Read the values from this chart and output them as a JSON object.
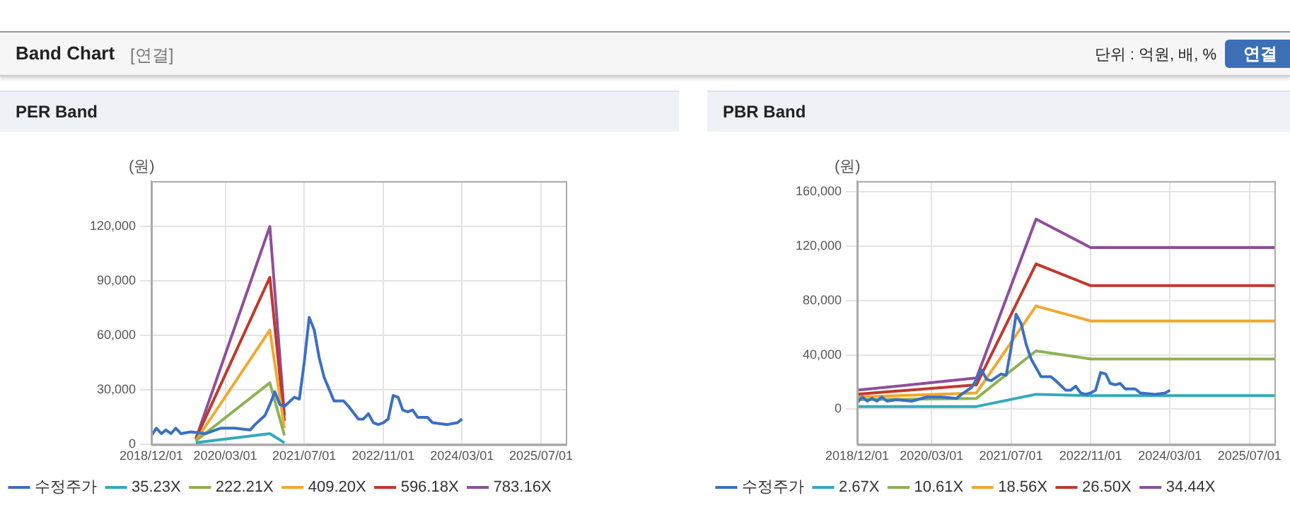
{
  "chart_data": [
    {
      "type": "other",
      "title": "Band Chart",
      "annotations": [
        "[연결]",
        "단위 : 억원, 배, %",
        "연결"
      ]
    },
    {
      "type": "line",
      "title": "PER Band",
      "ylabel": "(원)",
      "xlim": [
        "2018-12-01",
        "2025-12-01"
      ],
      "ylim": [
        0,
        145000
      ],
      "yticks": [
        0,
        {
          "value": 30000,
          "label": "30,000"
        },
        {
          "value": 60000,
          "label": "60,000"
        },
        {
          "value": 90000,
          "label": "90,000"
        },
        {
          "value": 120000,
          "label": "120,000"
        }
      ],
      "xticks": [
        {
          "value": "2018-12-01",
          "label": "2018/12/01"
        },
        {
          "value": "2020-03-01",
          "label": "2020/03/01"
        },
        {
          "value": "2021-07-01",
          "label": "2021/07/01"
        },
        {
          "value": "2022-11-01",
          "label": "2022/11/01"
        },
        {
          "value": "2024-03-01",
          "label": "2024/03/01"
        },
        {
          "value": "2025-07-01",
          "label": "2025/07/01"
        }
      ],
      "grid": true,
      "legend": "bottom",
      "series": [
        {
          "name": "수정주가",
          "color": "#3a70c4",
          "x": [
            "2018-12",
            "2019-01",
            "2019-02",
            "2019-03",
            "2019-04",
            "2019-05",
            "2019-06",
            "2019-08",
            "2019-11",
            "2020-02",
            "2020-05",
            "2020-08",
            "2020-09",
            "2020-11",
            "2020-12",
            "2021-01",
            "2021-02",
            "2021-03",
            "2021-05",
            "2021-06",
            "2021-07",
            "2021-08",
            "2021-09",
            "2021-10",
            "2021-11",
            "2022-01",
            "2022-03",
            "2022-04",
            "2022-06",
            "2022-07",
            "2022-08",
            "2022-09",
            "2022-10",
            "2022-11",
            "2022-12",
            "2023-01",
            "2023-02",
            "2023-03",
            "2023-04",
            "2023-05",
            "2023-06",
            "2023-08",
            "2023-09",
            "2023-12",
            "2024-02",
            "2024-03"
          ],
          "values": [
            5000,
            9000,
            6000,
            8000,
            6000,
            9000,
            6000,
            7000,
            6000,
            9000,
            9000,
            8000,
            11000,
            16000,
            22000,
            29000,
            22000,
            21000,
            26000,
            25000,
            45000,
            70000,
            63000,
            48000,
            37000,
            24000,
            24000,
            21000,
            14000,
            14000,
            17000,
            12000,
            11000,
            12000,
            14000,
            27000,
            26000,
            19000,
            18000,
            19000,
            15000,
            15000,
            12000,
            11000,
            12000,
            14000
          ]
        },
        {
          "name": "35.23X",
          "color": "#33aabb",
          "x": [
            "2019-09",
            "2020-12",
            "2021-03"
          ],
          "values": [
            1000,
            6000,
            1000
          ]
        },
        {
          "name": "222.21X",
          "color": "#8db255",
          "x": [
            "2019-09",
            "2020-12",
            "2021-03"
          ],
          "values": [
            2000,
            34000,
            5000
          ]
        },
        {
          "name": "409.20X",
          "color": "#f0a830",
          "x": [
            "2019-09",
            "2020-12",
            "2021-03"
          ],
          "values": [
            2000,
            63000,
            9000
          ]
        },
        {
          "name": "596.18X",
          "color": "#c0392b",
          "x": [
            "2019-09",
            "2020-12",
            "2021-03"
          ],
          "values": [
            3000,
            92000,
            13000
          ]
        },
        {
          "name": "783.16X",
          "color": "#8e4f9a",
          "x": [
            "2019-09",
            "2020-12",
            "2021-03"
          ],
          "values": [
            3000,
            120000,
            16000
          ]
        }
      ]
    },
    {
      "type": "line",
      "title": "PBR Band",
      "ylabel": "(원)",
      "xlim": [
        "2018-12-01",
        "2025-12-01"
      ],
      "ylim": [
        -26000,
        168000
      ],
      "yticks": [
        0,
        {
          "value": 40000,
          "label": "40,000"
        },
        {
          "value": 80000,
          "label": "80,000"
        },
        {
          "value": 120000,
          "label": "120,000"
        },
        {
          "value": 160000,
          "label": "160,000"
        }
      ],
      "xticks": [
        {
          "value": "2018-12-01",
          "label": "2018/12/01"
        },
        {
          "value": "2020-03-01",
          "label": "2020/03/01"
        },
        {
          "value": "2021-07-01",
          "label": "2021/07/01"
        },
        {
          "value": "2022-11-01",
          "label": "2022/11/01"
        },
        {
          "value": "2024-03-01",
          "label": "2024/03/01"
        },
        {
          "value": "2025-07-01",
          "label": "2025/07/01"
        }
      ],
      "grid": true,
      "legend": "bottom",
      "series": [
        {
          "name": "수정주가",
          "color": "#3a70c4",
          "x": [
            "2018-12",
            "2019-01",
            "2019-02",
            "2019-03",
            "2019-04",
            "2019-05",
            "2019-06",
            "2019-08",
            "2019-11",
            "2020-02",
            "2020-05",
            "2020-08",
            "2020-09",
            "2020-11",
            "2020-12",
            "2021-01",
            "2021-02",
            "2021-03",
            "2021-05",
            "2021-06",
            "2021-07",
            "2021-08",
            "2021-09",
            "2021-10",
            "2021-11",
            "2022-01",
            "2022-03",
            "2022-04",
            "2022-06",
            "2022-07",
            "2022-08",
            "2022-09",
            "2022-10",
            "2022-11",
            "2022-12",
            "2023-01",
            "2023-02",
            "2023-03",
            "2023-04",
            "2023-05",
            "2023-06",
            "2023-08",
            "2023-09",
            "2023-12",
            "2024-02",
            "2024-03"
          ],
          "values": [
            5000,
            9000,
            6000,
            8000,
            6000,
            9000,
            6000,
            7000,
            6000,
            9000,
            9000,
            8000,
            11000,
            16000,
            22000,
            29000,
            22000,
            21000,
            26000,
            25000,
            45000,
            70000,
            63000,
            48000,
            37000,
            24000,
            24000,
            21000,
            14000,
            14000,
            17000,
            12000,
            11000,
            12000,
            14000,
            27000,
            26000,
            19000,
            18000,
            19000,
            15000,
            15000,
            12000,
            11000,
            12000,
            14000
          ]
        },
        {
          "name": "2.67X",
          "color": "#33aabb",
          "x": [
            "2018-12",
            "2020-12",
            "2021-12",
            "2022-11",
            "2025-12"
          ],
          "values": [
            2000,
            2000,
            11000,
            10000,
            10000
          ]
        },
        {
          "name": "10.61X",
          "color": "#8db255",
          "x": [
            "2018-12",
            "2020-12",
            "2021-12",
            "2022-11",
            "2025-12"
          ],
          "values": [
            7000,
            8000,
            43000,
            37000,
            37000
          ]
        },
        {
          "name": "18.56X",
          "color": "#f0a830",
          "x": [
            "2018-12",
            "2020-12",
            "2021-12",
            "2022-11",
            "2025-12"
          ],
          "values": [
            9000,
            12000,
            76000,
            65000,
            65000
          ]
        },
        {
          "name": "26.50X",
          "color": "#c0392b",
          "x": [
            "2018-12",
            "2020-12",
            "2021-12",
            "2022-11",
            "2025-12"
          ],
          "values": [
            11000,
            18000,
            107000,
            91000,
            91000
          ]
        },
        {
          "name": "34.44X",
          "color": "#8e4f9a",
          "x": [
            "2018-12",
            "2020-12",
            "2021-12",
            "2022-11",
            "2025-12"
          ],
          "values": [
            14000,
            23000,
            140000,
            119000,
            119000
          ]
        }
      ]
    }
  ]
}
